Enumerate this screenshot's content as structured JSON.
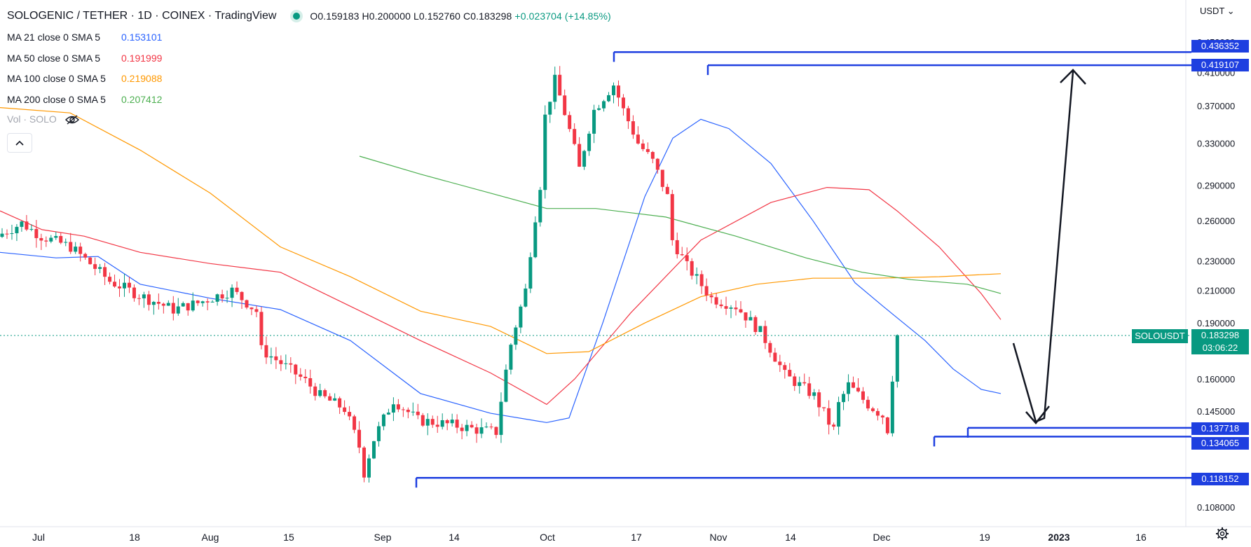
{
  "header": {
    "title": "SOLOGENIC / TETHER · 1D · COINEX · TradingView",
    "ohlc": "O0.159183  H0.200000  L0.152760  C0.183298  ",
    "change": "+0.023704 (+14.85%)"
  },
  "indicators": [
    {
      "label": "MA 21 close 0 SMA 5",
      "value": "0.153101",
      "color": "#2962ff"
    },
    {
      "label": "MA 50 close 0 SMA 5",
      "value": "0.191999",
      "color": "#f23645"
    },
    {
      "label": "MA 100 close 0 SMA 5",
      "value": "0.219088",
      "color": "#ff9800"
    },
    {
      "label": "MA 200 close 0 SMA 5",
      "value": "0.207412",
      "color": "#4caf50"
    }
  ],
  "volume_label": "Vol · SOLO",
  "currency_menu": "USDT ⌄",
  "price_axis": {
    "ticks": [
      "0.450000",
      "0.410000",
      "0.370000",
      "0.330000",
      "0.290000",
      "0.260000",
      "0.230000",
      "0.210000",
      "0.190000",
      "0.160000",
      "0.145000",
      "0.108000"
    ],
    "highlighted": [
      "0.436352",
      "0.419107",
      "0.137718",
      "0.134065",
      "0.118152"
    ]
  },
  "last_price": {
    "symbol": "SOLOUSDT",
    "price": "0.183298",
    "countdown": "03:06:22"
  },
  "time_axis": [
    "Jul",
    "18",
    "Aug",
    "15",
    "Sep",
    "14",
    "Oct",
    "17",
    "Nov",
    "14",
    "Dec",
    "19",
    "2023",
    "16"
  ],
  "colors": {
    "up": "#089981",
    "down": "#f23645",
    "levels": "#1e3fe0",
    "arrow": "#131722"
  }
}
